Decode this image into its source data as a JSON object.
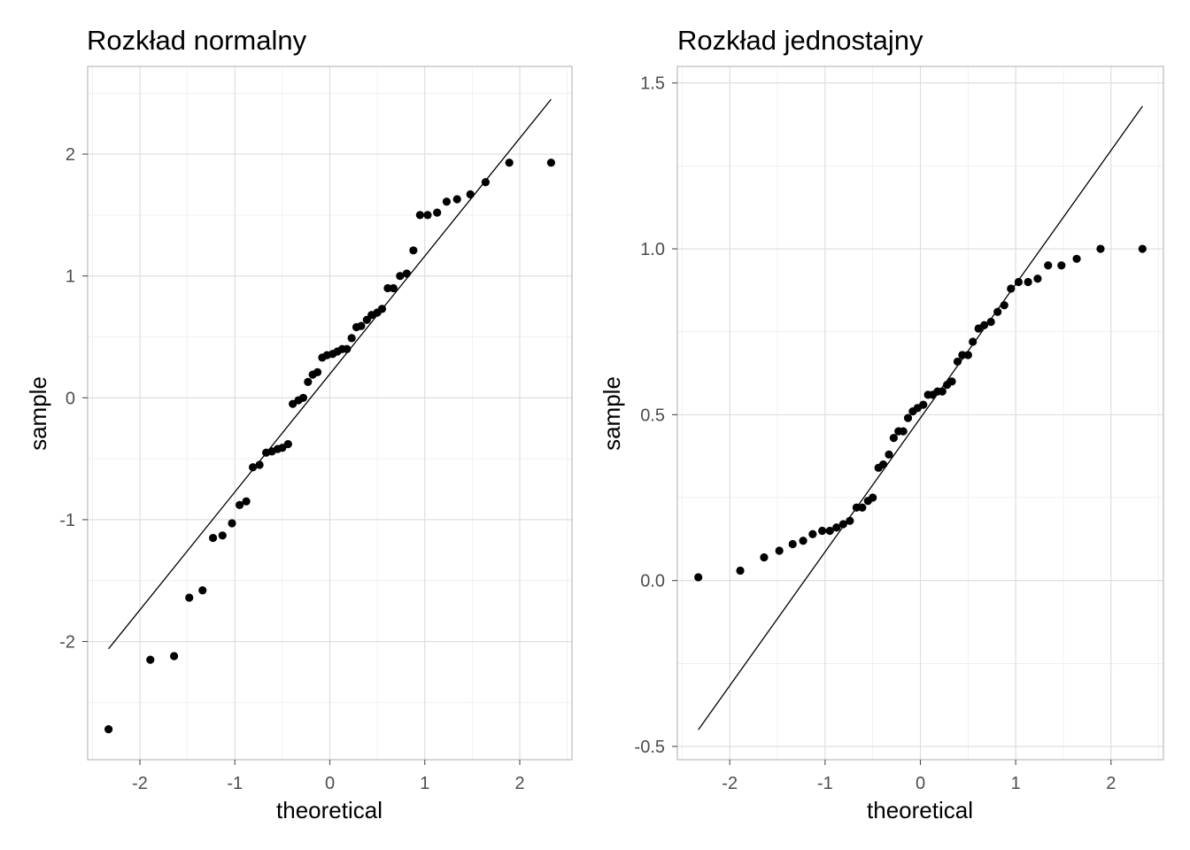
{
  "chart_data": [
    {
      "type": "scatter",
      "title": "Rozkład normalny",
      "xlabel": "theoretical",
      "ylabel": "sample",
      "xlim": [
        -2.55,
        2.55
      ],
      "ylim": [
        -2.97,
        2.72
      ],
      "x_ticks": [
        -2,
        -1,
        0,
        1,
        2
      ],
      "x_tick_labels": [
        "-2",
        "-1",
        "0",
        "1",
        "2"
      ],
      "y_ticks": [
        -2,
        -1,
        0,
        1,
        2
      ],
      "y_tick_labels": [
        "-2",
        "-1",
        "0",
        "1",
        "2"
      ],
      "grid": true,
      "reference_line": {
        "x": [
          -2.33,
          2.33
        ],
        "y": [
          -2.06,
          2.45
        ]
      },
      "x": [
        -2.33,
        -1.89,
        -1.64,
        -1.48,
        -1.34,
        -1.23,
        -1.13,
        -1.03,
        -0.95,
        -0.88,
        -0.81,
        -0.74,
        -0.67,
        -0.61,
        -0.55,
        -0.5,
        -0.44,
        -0.39,
        -0.33,
        -0.28,
        -0.23,
        -0.18,
        -0.13,
        -0.08,
        -0.03,
        0.03,
        0.08,
        0.13,
        0.18,
        0.23,
        0.28,
        0.33,
        0.39,
        0.44,
        0.5,
        0.55,
        0.61,
        0.67,
        0.74,
        0.81,
        0.88,
        0.95,
        1.03,
        1.13,
        1.23,
        1.34,
        1.48,
        1.64,
        1.89,
        2.33
      ],
      "y": [
        -2.72,
        -2.15,
        -2.12,
        -1.64,
        -1.58,
        -1.15,
        -1.13,
        -1.03,
        -0.88,
        -0.85,
        -0.57,
        -0.55,
        -0.45,
        -0.44,
        -0.42,
        -0.41,
        -0.38,
        -0.05,
        -0.02,
        0.0,
        0.13,
        0.19,
        0.21,
        0.33,
        0.35,
        0.36,
        0.38,
        0.4,
        0.4,
        0.49,
        0.58,
        0.59,
        0.64,
        0.68,
        0.7,
        0.73,
        0.9,
        0.9,
        1.0,
        1.02,
        1.21,
        1.5,
        1.5,
        1.52,
        1.61,
        1.63,
        1.67,
        1.77,
        1.93,
        1.93
      ]
    },
    {
      "type": "scatter",
      "title": "Rozkład jednostajny",
      "xlabel": "theoretical",
      "ylabel": "sample",
      "xlim": [
        -2.55,
        2.55
      ],
      "ylim": [
        -0.54,
        1.55
      ],
      "x_ticks": [
        -2,
        -1,
        0,
        1,
        2
      ],
      "x_tick_labels": [
        "-2",
        "-1",
        "0",
        "1",
        "2"
      ],
      "y_ticks": [
        -0.5,
        0.0,
        0.5,
        1.0,
        1.5
      ],
      "y_tick_labels": [
        "-0.5",
        "0.0",
        "0.5",
        "1.0",
        "1.5"
      ],
      "grid": true,
      "reference_line": {
        "x": [
          -2.33,
          2.33
        ],
        "y": [
          -0.45,
          1.43
        ]
      },
      "x": [
        -2.33,
        -1.89,
        -1.64,
        -1.48,
        -1.34,
        -1.23,
        -1.13,
        -1.03,
        -0.95,
        -0.88,
        -0.81,
        -0.74,
        -0.67,
        -0.61,
        -0.55,
        -0.5,
        -0.44,
        -0.39,
        -0.33,
        -0.28,
        -0.23,
        -0.18,
        -0.13,
        -0.08,
        -0.03,
        0.03,
        0.08,
        0.13,
        0.18,
        0.23,
        0.28,
        0.33,
        0.39,
        0.44,
        0.5,
        0.55,
        0.61,
        0.67,
        0.74,
        0.81,
        0.88,
        0.95,
        1.03,
        1.13,
        1.23,
        1.34,
        1.48,
        1.64,
        1.89,
        2.33
      ],
      "y": [
        0.01,
        0.03,
        0.07,
        0.09,
        0.11,
        0.12,
        0.14,
        0.15,
        0.15,
        0.16,
        0.17,
        0.18,
        0.22,
        0.22,
        0.24,
        0.25,
        0.34,
        0.35,
        0.38,
        0.43,
        0.45,
        0.45,
        0.49,
        0.51,
        0.52,
        0.53,
        0.56,
        0.56,
        0.57,
        0.57,
        0.59,
        0.6,
        0.66,
        0.68,
        0.68,
        0.72,
        0.76,
        0.77,
        0.78,
        0.81,
        0.83,
        0.88,
        0.9,
        0.9,
        0.91,
        0.95,
        0.95,
        0.97,
        1.0,
        1.0
      ]
    }
  ]
}
